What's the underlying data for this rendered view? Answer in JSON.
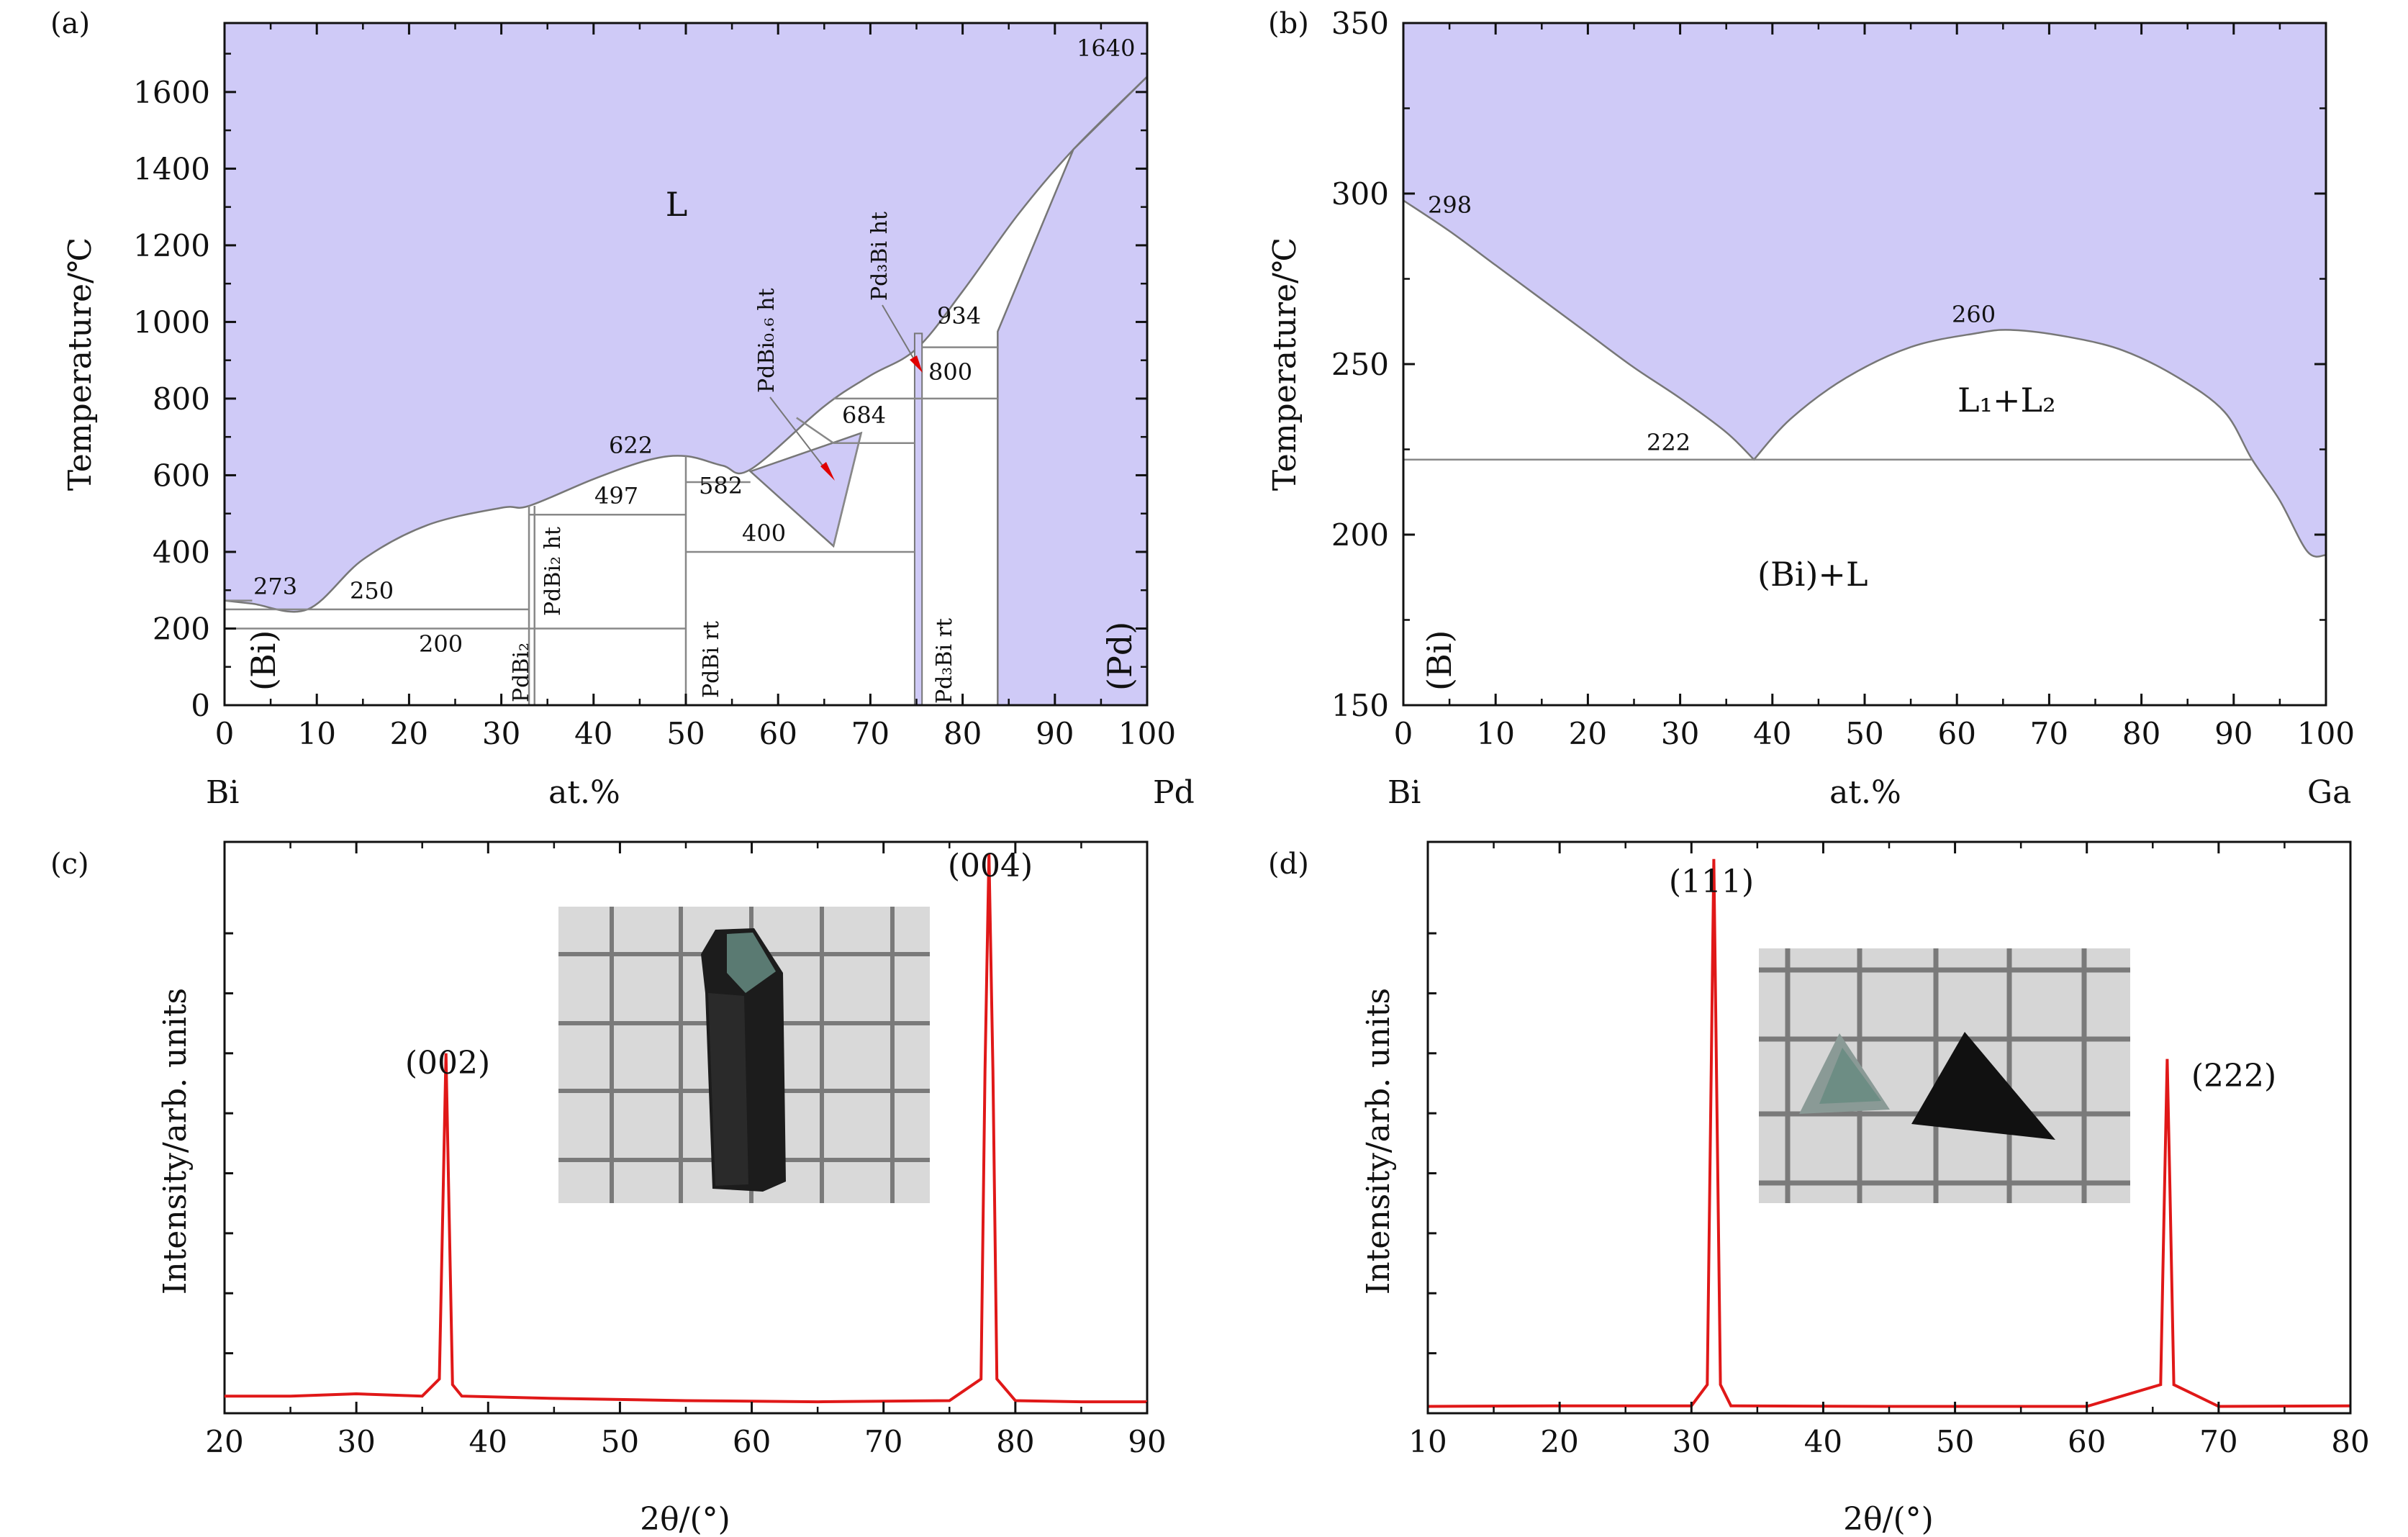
{
  "colors": {
    "liquid_fill": "#cfcaf7",
    "boundary": "#777777",
    "xrd_line": "#e01818",
    "axis": "#111111",
    "marker": "#e00000"
  },
  "panels": {
    "a": {
      "label": "(a)",
      "ylabel": "Temperature/℃",
      "xlabel": "at.%",
      "x_left": "Bi",
      "x_right": "Pd",
      "xticks": [
        0,
        10,
        20,
        30,
        40,
        50,
        60,
        70,
        80,
        90,
        100
      ],
      "yticks": [
        0,
        200,
        400,
        600,
        800,
        1000,
        1200,
        1400,
        1600
      ],
      "region_L": "L",
      "temps": [
        "273",
        "250",
        "200",
        "497",
        "622",
        "582",
        "400",
        "684",
        "800",
        "934",
        "1640"
      ],
      "phase_bi": "(Bi)",
      "phase_pd": "(Pd)",
      "phase_pdbi2": "PdBi₂",
      "phase_pdbi2_ht": "PdBi₂ ht",
      "phase_pdbi_rt": "PdBi rt",
      "phase_pdbi06_ht": "PdBi₀.₆ ht",
      "phase_pd3bi_ht": "Pd₃Bi ht",
      "phase_pd3bi_rt": "Pd₃Bi rt"
    },
    "b": {
      "label": "(b)",
      "ylabel": "Temperature/℃",
      "xlabel": "at.%",
      "x_left": "Bi",
      "x_right": "Ga",
      "xticks": [
        0,
        10,
        20,
        30,
        40,
        50,
        60,
        70,
        80,
        90,
        100
      ],
      "yticks": [
        150,
        200,
        250,
        300,
        350
      ],
      "temps": [
        "298",
        "260",
        "222"
      ],
      "region_l1l2": "L₁+L₂",
      "region_bil": "(Bi)+L",
      "phase_bi": "(Bi)"
    },
    "c": {
      "label": "(c)",
      "ylabel": "Intensity/arb. units",
      "xlabel": "2θ/(°)",
      "xticks": [
        20,
        30,
        40,
        50,
        60,
        70,
        80,
        90
      ],
      "peaks": [
        "(002)",
        "(004)"
      ]
    },
    "d": {
      "label": "(d)",
      "ylabel": "Intensity/arb. units",
      "xlabel": "2θ/(°)",
      "xticks": [
        10,
        20,
        30,
        40,
        50,
        60,
        70,
        80
      ],
      "peaks": [
        "(111)",
        "(222)"
      ]
    }
  },
  "chart_data": [
    {
      "type": "area",
      "title": "",
      "xlabel": "at.%",
      "ylabel": "Temperature/℃",
      "xlim": [
        0,
        100
      ],
      "ylim": [
        0,
        1780
      ],
      "series": [
        {
          "name": "liquidus",
          "x": [
            0,
            3,
            9,
            15,
            22,
            30,
            33,
            40,
            46,
            50,
            54,
            57,
            65,
            70,
            75,
            80,
            86,
            92,
            100
          ],
          "y": [
            273,
            265,
            250,
            380,
            470,
            515,
            520,
            590,
            640,
            650,
            625,
            615,
            780,
            860,
            930,
            1080,
            1280,
            1450,
            1640
          ]
        }
      ],
      "invariants": [
        273,
        250,
        200,
        497,
        622,
        582,
        400,
        684,
        800,
        934,
        1640
      ]
    },
    {
      "type": "area",
      "title": "",
      "xlabel": "at.%",
      "ylabel": "Temperature/℃",
      "xlim": [
        0,
        100
      ],
      "ylim": [
        150,
        350
      ],
      "series": [
        {
          "name": "liquidus",
          "x": [
            0,
            5,
            10,
            15,
            20,
            25,
            30,
            35,
            38,
            42,
            48,
            55,
            62,
            66,
            72,
            78,
            84,
            89,
            92,
            95,
            98,
            100
          ],
          "y": [
            298,
            289,
            279,
            269,
            259,
            249,
            240,
            230,
            222,
            234,
            246,
            255,
            259,
            260,
            258,
            254,
            246,
            236,
            222,
            210,
            195,
            194
          ]
        }
      ],
      "invariants": [
        298,
        260,
        222
      ]
    },
    {
      "type": "line",
      "title": "",
      "xlabel": "2θ/(°)",
      "ylabel": "Intensity/arb. units",
      "xlim": [
        20,
        90
      ],
      "ylim": [
        0,
        100
      ],
      "series": [
        {
          "name": "",
          "x": [
            20,
            25,
            30,
            35,
            36.3,
            36.6,
            36.8,
            37.0,
            37.3,
            38,
            45,
            55,
            65,
            75,
            77.4,
            77.7,
            78.0,
            78.3,
            78.6,
            80,
            85,
            90
          ],
          "y": [
            3,
            3,
            3.4,
            3,
            6,
            40,
            63,
            40,
            5,
            3,
            2.6,
            2.2,
            2,
            2.2,
            6,
            60,
            98,
            60,
            6,
            2.2,
            2,
            2
          ]
        }
      ],
      "peak_labels": [
        {
          "text": "(002)",
          "x": 36.8
        },
        {
          "text": "(004)",
          "x": 78.0
        }
      ]
    },
    {
      "type": "line",
      "title": "",
      "xlabel": "2θ/(°)",
      "ylabel": "Intensity/arb. units",
      "xlim": [
        10,
        80
      ],
      "ylim": [
        0,
        100
      ],
      "series": [
        {
          "name": "",
          "x": [
            10,
            20,
            30,
            31.2,
            31.5,
            31.7,
            31.9,
            32.2,
            33,
            45,
            60,
            65.6,
            65.9,
            66.1,
            66.3,
            66.6,
            70,
            80
          ],
          "y": [
            1.2,
            1.3,
            1.3,
            5,
            60,
            97,
            60,
            5,
            1.3,
            1.2,
            1.2,
            5,
            40,
            62,
            40,
            5,
            1.2,
            1.3
          ]
        }
      ],
      "peak_labels": [
        {
          "text": "(111)",
          "x": 31.7
        },
        {
          "text": "(222)",
          "x": 66.1
        }
      ]
    }
  ]
}
